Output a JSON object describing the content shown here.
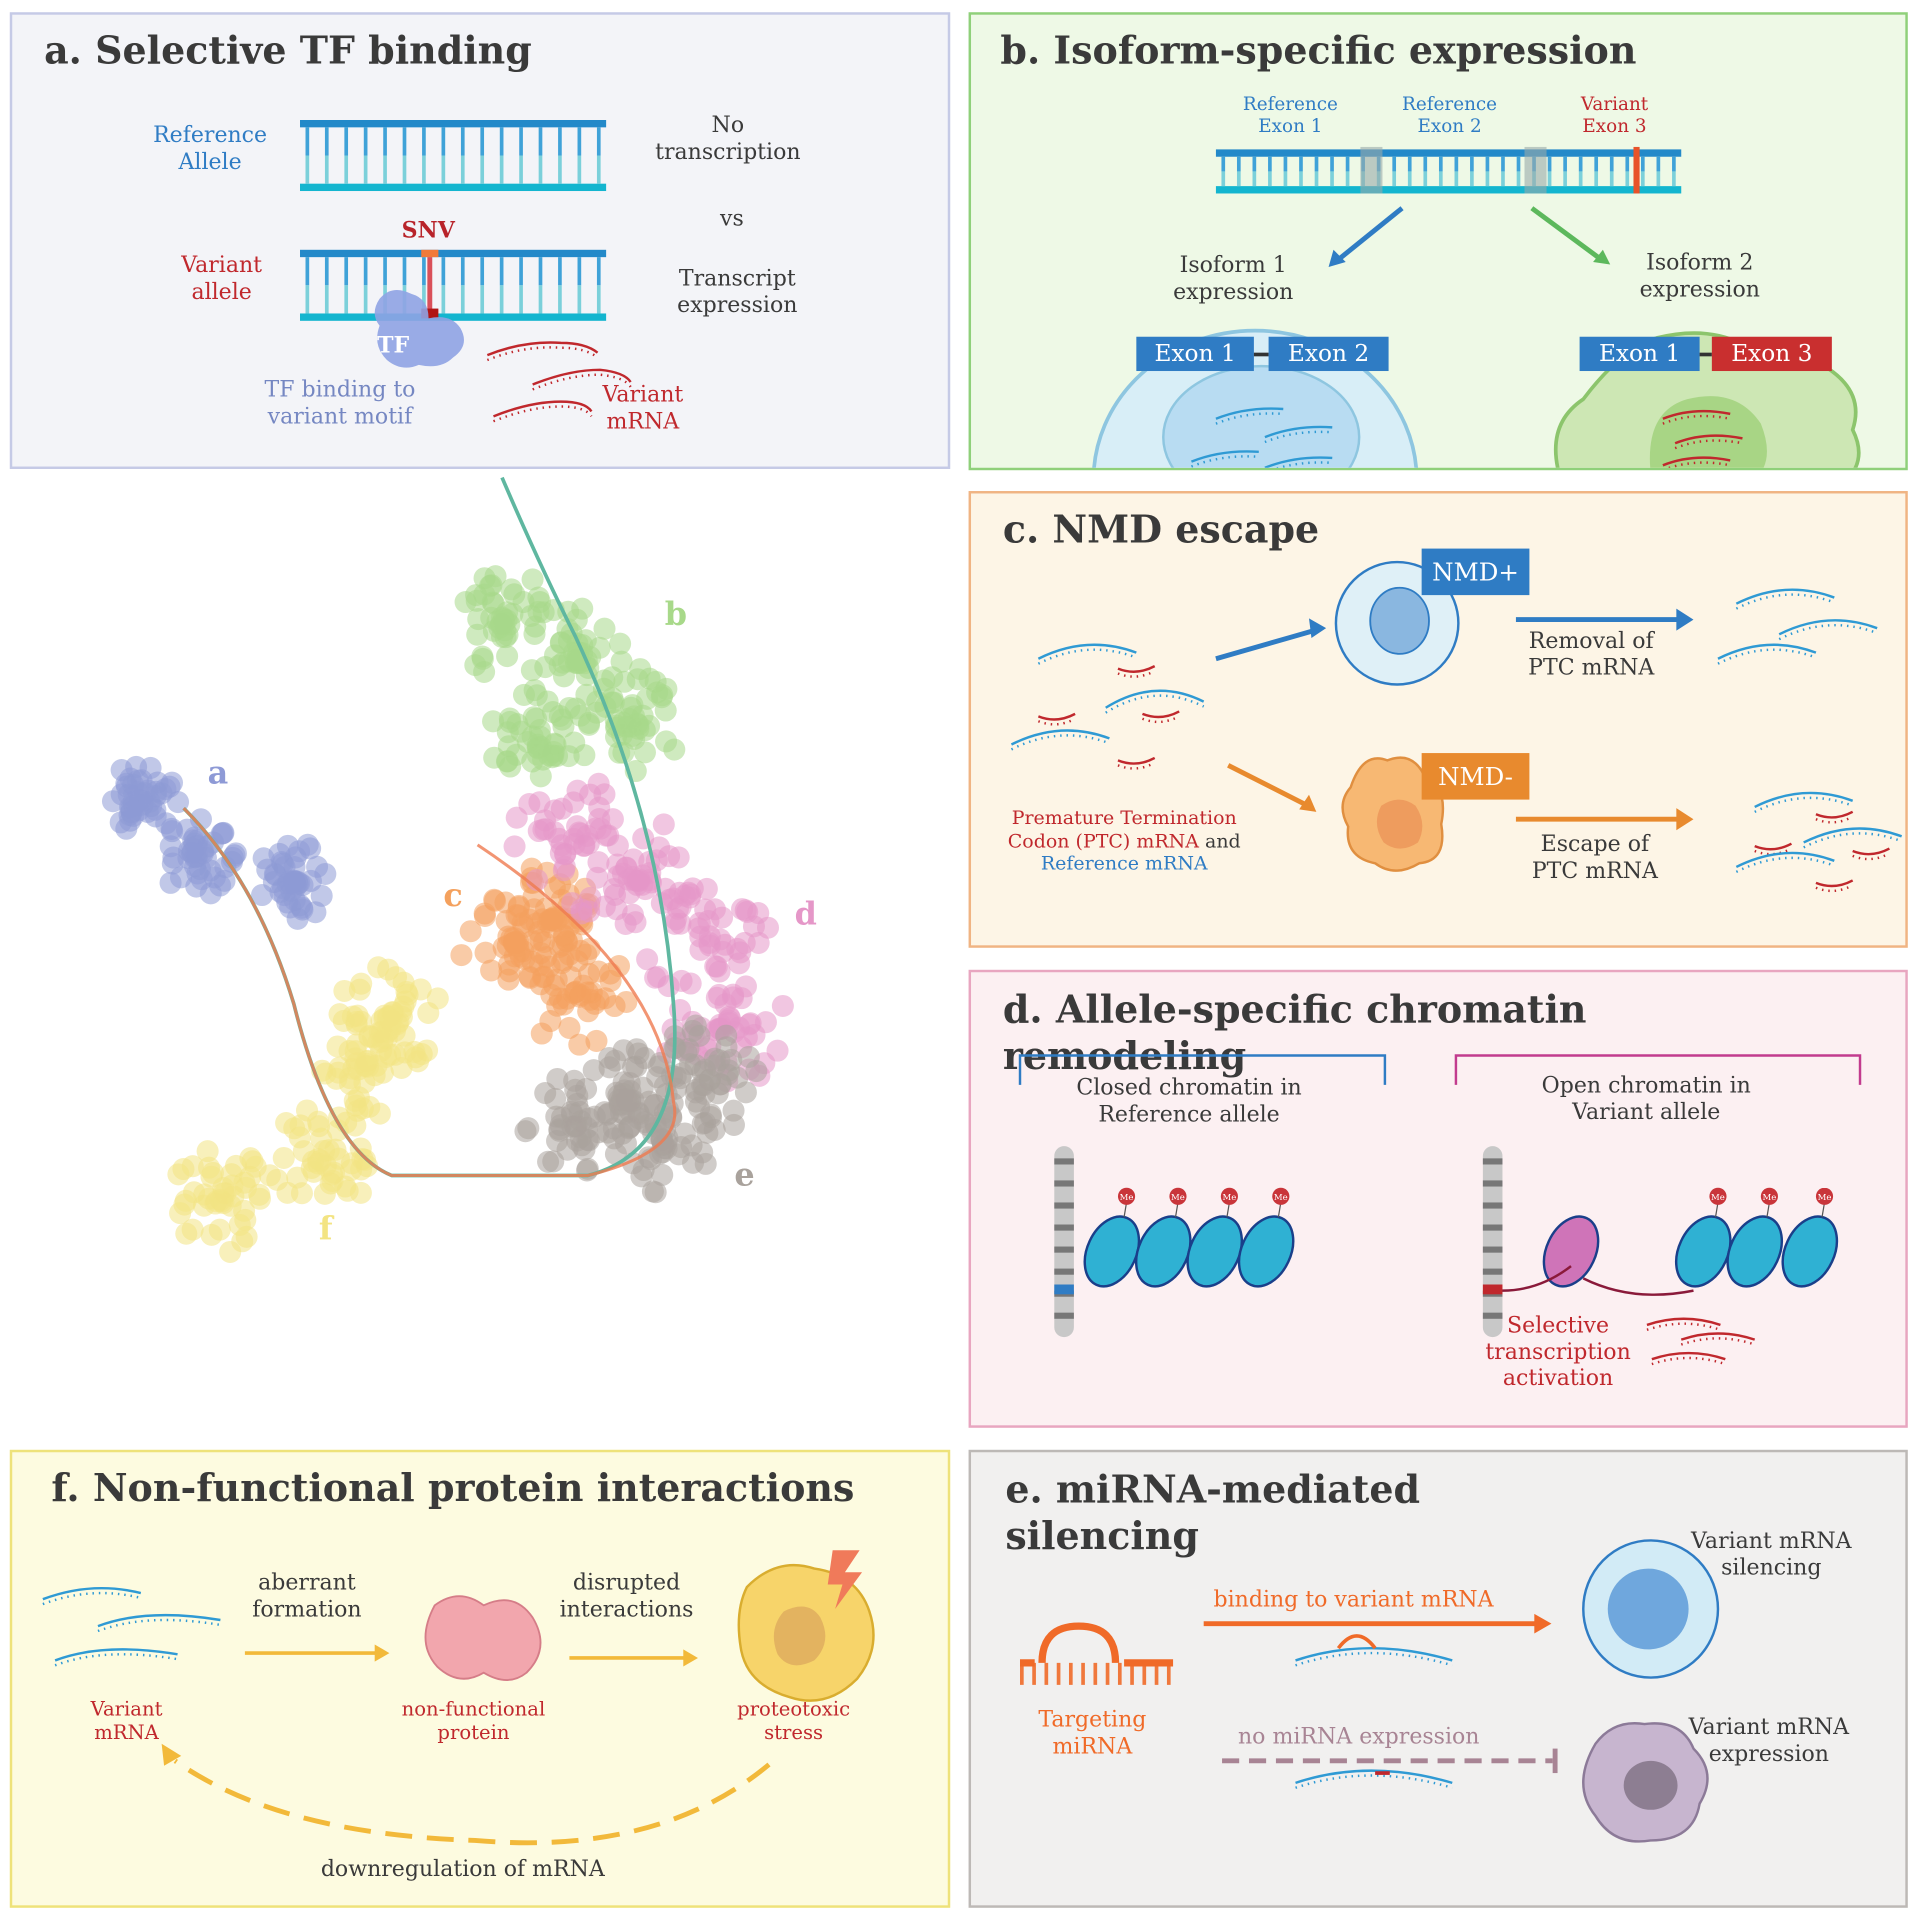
{
  "colors": {
    "blue": "#2f7cc4",
    "red": "#c0282d",
    "orange": "#e88a2e",
    "text": "#3a3a3a"
  },
  "panel_a": {
    "title": "a. Selective TF binding",
    "ref_allele": [
      "Reference",
      "Allele"
    ],
    "variant_allele": [
      "Variant",
      "allele"
    ],
    "snv": "SNV",
    "no_transcription": [
      "No",
      "transcription"
    ],
    "vs": "vs",
    "transcript_expression": [
      "Transcript",
      "expression"
    ],
    "tf": "TF",
    "tf_binding": [
      "TF binding to",
      "variant motif"
    ],
    "variant_mrna": [
      "Variant",
      "mRNA"
    ]
  },
  "panel_b": {
    "title": "b. Isoform-specific expression",
    "ref_exon1": [
      "Reference",
      "Exon 1"
    ],
    "ref_exon2": [
      "Reference",
      "Exon 2"
    ],
    "var_exon3": [
      "Variant",
      "Exon 3"
    ],
    "isoform1": [
      "Isoform 1",
      "expression"
    ],
    "isoform2": [
      "Isoform 2",
      "expression"
    ],
    "exon1": "Exon 1",
    "exon2": "Exon 2",
    "exon3": "Exon 3"
  },
  "panel_c": {
    "title": "c.  NMD escape",
    "nmd_plus": "NMD+",
    "nmd_minus": "NMD-",
    "removal": [
      "Removal of",
      "PTC mRNA"
    ],
    "escape": [
      "Escape of",
      "PTC mRNA"
    ],
    "ptc_line1": "Premature Termination",
    "ptc_line2": "Codon (PTC) mRNA",
    "and": "and",
    "reference_mrna": "Reference mRNA"
  },
  "panel_d": {
    "title": [
      "d. Allele-specific chromatin",
      "remodeling"
    ],
    "closed": [
      "Closed chromatin in",
      "Reference allele"
    ],
    "open": [
      "Open chromatin in",
      "Variant allele"
    ],
    "me": "Me",
    "selective": [
      "Selective",
      "transcription",
      "activation"
    ]
  },
  "panel_e": {
    "title": [
      "e. miRNA-mediated",
      "silencing"
    ],
    "binding": "binding to variant mRNA",
    "targeting": [
      "Targeting",
      "miRNA"
    ],
    "no_mirna": "no miRNA expression",
    "silencing": [
      "Variant mRNA",
      "silencing"
    ],
    "expression": [
      "Variant mRNA",
      "expression"
    ]
  },
  "panel_f": {
    "title": "f. Non-functional protein interactions",
    "aberrant": [
      "aberrant",
      "formation"
    ],
    "disrupted": [
      "disrupted",
      "interactions"
    ],
    "variant_mrna": [
      "Variant",
      "mRNA"
    ],
    "nonfunctional": [
      "non-functional",
      "protein"
    ],
    "proteotoxic": [
      "proteotoxic",
      "stress"
    ],
    "downregulation": "downregulation of mRNA"
  },
  "scatter": {
    "clusters": [
      {
        "label": "a",
        "color": "#8e9ad6"
      },
      {
        "label": "b",
        "color": "#a8d98a"
      },
      {
        "label": "c",
        "color": "#f4a15e"
      },
      {
        "label": "d",
        "color": "#e597c8"
      },
      {
        "label": "e",
        "color": "#a9a29c"
      },
      {
        "label": "f",
        "color": "#f3e483"
      }
    ]
  }
}
